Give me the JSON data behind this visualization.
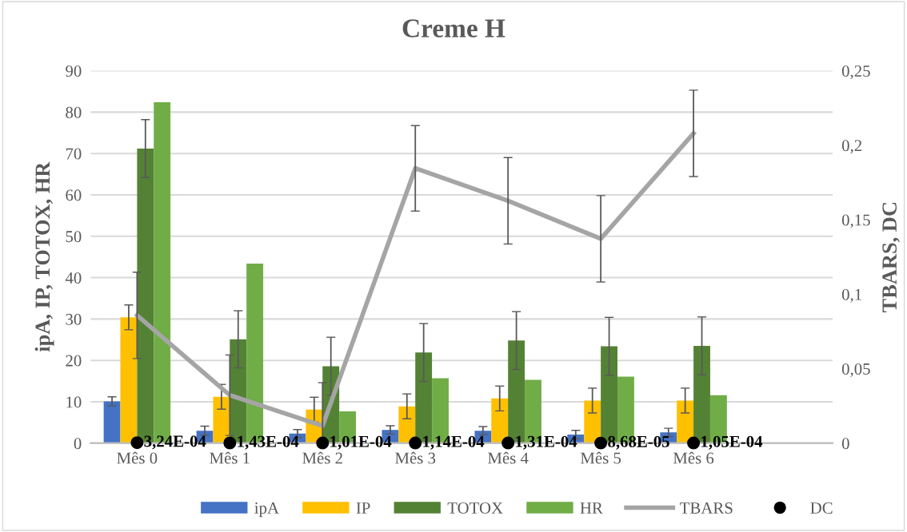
{
  "chart_data": {
    "type": "bar",
    "title": "Creme H",
    "ylabel": "ipA, IP, TOTOX, HR",
    "y2label": "TBARS, DC",
    "categories": [
      "Mês 0",
      "Mês 1",
      "Mês 2",
      "Mês 3",
      "Mês 4",
      "Mês 5",
      "Mês 6",
      null
    ],
    "series": [
      {
        "name": "ipA",
        "color": "#4472c4",
        "values": [
          10.1,
          3.0,
          2.3,
          3.2,
          3.0,
          2.1,
          2.6,
          null
        ],
        "errors": [
          1.1,
          1.1,
          1.0,
          1.0,
          1.0,
          1.0,
          1.0,
          null
        ]
      },
      {
        "name": "IP",
        "color": "#ffc000",
        "values": [
          30.4,
          11.2,
          8.1,
          8.9,
          10.8,
          10.3,
          10.3,
          null
        ],
        "errors": [
          3.0,
          3.0,
          3.0,
          3.0,
          3.0,
          3.0,
          3.0,
          null
        ]
      },
      {
        "name": "TOTOX",
        "color": "#548235",
        "values": [
          71.2,
          25.1,
          18.6,
          21.9,
          24.8,
          23.4,
          23.5,
          null
        ],
        "errors": [
          7.0,
          6.9,
          7.0,
          7.0,
          7.0,
          7.0,
          7.0,
          null
        ]
      },
      {
        "name": "HR",
        "color": "#70ad47",
        "values": [
          82.4,
          43.4,
          7.7,
          15.7,
          15.3,
          16.1,
          11.6,
          null
        ]
      },
      {
        "name": "TBARS",
        "type": "line",
        "axis": "y2",
        "color": "#a5a5a5",
        "values": [
          0.0858,
          0.0322,
          0.0116,
          0.1845,
          0.1627,
          0.1372,
          0.208,
          null
        ],
        "errors": [
          0.029,
          0.027,
          0.029,
          0.0287,
          0.029,
          0.029,
          0.029,
          null
        ]
      },
      {
        "name": "DC",
        "type": "scatter",
        "axis": "y2",
        "color": "#000000",
        "marker": "circle",
        "values": [
          0.000324,
          0.000143,
          0.000101,
          0.000114,
          0.000131,
          8.68e-05,
          0.000105,
          null
        ],
        "value_labels": [
          "3,24E-04",
          "1,43E-04",
          "1,01E-04",
          "1,14E-04",
          "1,31E-04",
          "8,68E-05",
          "1,05E-04",
          null
        ]
      }
    ],
    "ylim": [
      0,
      90
    ],
    "yticks": [
      0,
      10,
      20,
      30,
      40,
      50,
      60,
      70,
      80,
      90
    ],
    "y2lim": [
      0,
      0.25
    ],
    "y2ticks": [
      {
        "value": 0,
        "label": "0"
      },
      {
        "value": 0.05,
        "label": "0,05"
      },
      {
        "value": 0.1,
        "label": "0,1"
      },
      {
        "value": 0.15,
        "label": "0,15"
      },
      {
        "value": 0.2,
        "label": "0,2"
      },
      {
        "value": 0.25,
        "label": "0,25"
      }
    ],
    "grid": "y",
    "legend": "bottom"
  }
}
